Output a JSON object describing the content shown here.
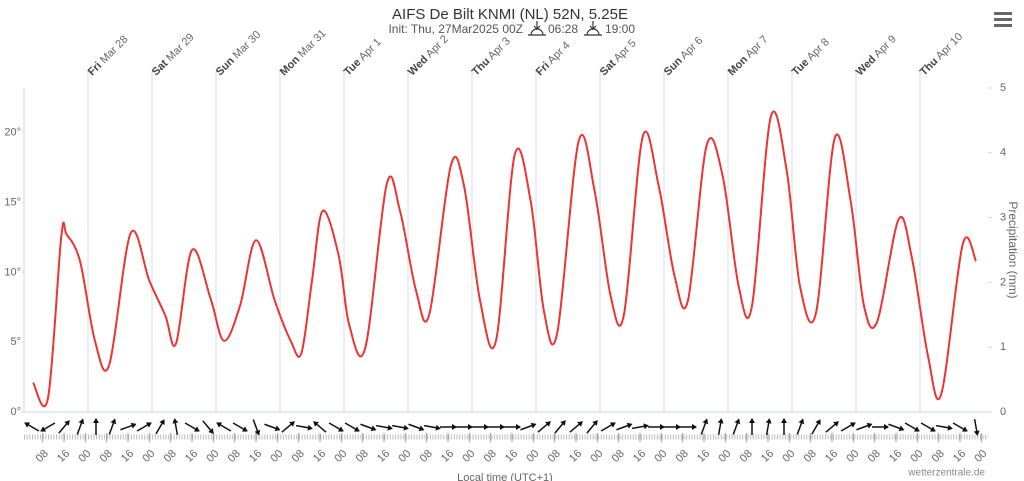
{
  "chart_data": {
    "type": "line",
    "title": "AIFS De Bilt KNMI (NL) 52N, 5.25E",
    "subtitle": "Init: Thu, 27Mar2025 00Z",
    "sunrise": "06:28",
    "sunset": "19:00",
    "credit": "wetterzentrale.de",
    "x_label": "Local time (UTC+1)",
    "y2_label": "Precipitation (mm)",
    "xlim": [
      0,
      361.5
    ],
    "ylim": [
      0,
      23.2
    ],
    "y2lim": [
      0,
      5
    ],
    "yticks": [
      {
        "value": 0,
        "label": "0°"
      },
      {
        "value": 5,
        "label": "5°"
      },
      {
        "value": 10,
        "label": "10°"
      },
      {
        "value": 15,
        "label": "15°"
      },
      {
        "value": 20,
        "label": "20°"
      }
    ],
    "y2ticks": [
      0,
      1,
      2,
      3,
      4,
      5
    ],
    "day_ticks": [
      {
        "value": 24,
        "day": "Fri",
        "date": "Mar 28"
      },
      {
        "value": 48,
        "day": "Sat",
        "date": "Mar 29"
      },
      {
        "value": 72,
        "day": "Sun",
        "date": "Mar 30"
      },
      {
        "value": 96,
        "day": "Mon",
        "date": "Mar 31"
      },
      {
        "value": 120,
        "day": "Tue",
        "date": "Apr 1"
      },
      {
        "value": 144,
        "day": "Wed",
        "date": "Apr 2"
      },
      {
        "value": 168,
        "day": "Thu",
        "date": "Apr 3"
      },
      {
        "value": 192,
        "day": "Fri",
        "date": "Apr 4"
      },
      {
        "value": 216,
        "day": "Sat",
        "date": "Apr 5"
      },
      {
        "value": 240,
        "day": "Sun",
        "date": "Apr 6"
      },
      {
        "value": 264,
        "day": "Mon",
        "date": "Apr 7"
      },
      {
        "value": 288,
        "day": "Tue",
        "date": "Apr 8"
      },
      {
        "value": 312,
        "day": "Wed",
        "date": "Apr 9"
      },
      {
        "value": 336,
        "day": "Thu",
        "date": "Apr 10"
      }
    ],
    "xticks": [
      {
        "value": 7,
        "label": "08"
      },
      {
        "value": 15,
        "label": "16"
      },
      {
        "value": 23,
        "label": "00"
      },
      {
        "value": 31,
        "label": "08"
      },
      {
        "value": 39,
        "label": "16"
      },
      {
        "value": 47,
        "label": "00"
      },
      {
        "value": 55,
        "label": "08"
      },
      {
        "value": 63,
        "label": "16"
      },
      {
        "value": 71,
        "label": "00"
      },
      {
        "value": 79,
        "label": "08"
      },
      {
        "value": 87,
        "label": "16"
      },
      {
        "value": 95,
        "label": "00"
      },
      {
        "value": 103,
        "label": "08"
      },
      {
        "value": 111,
        "label": "16"
      },
      {
        "value": 119,
        "label": "00"
      },
      {
        "value": 127,
        "label": "08"
      },
      {
        "value": 135,
        "label": "16"
      },
      {
        "value": 143,
        "label": "00"
      },
      {
        "value": 151,
        "label": "08"
      },
      {
        "value": 159,
        "label": "16"
      },
      {
        "value": 167,
        "label": "00"
      },
      {
        "value": 175,
        "label": "08"
      },
      {
        "value": 183,
        "label": "16"
      },
      {
        "value": 191,
        "label": "00"
      },
      {
        "value": 199,
        "label": "08"
      },
      {
        "value": 207,
        "label": "16"
      },
      {
        "value": 215,
        "label": "00"
      },
      {
        "value": 223,
        "label": "08"
      },
      {
        "value": 231,
        "label": "16"
      },
      {
        "value": 239,
        "label": "00"
      },
      {
        "value": 247,
        "label": "08"
      },
      {
        "value": 255,
        "label": "16"
      },
      {
        "value": 263,
        "label": "00"
      },
      {
        "value": 271,
        "label": "08"
      },
      {
        "value": 279,
        "label": "16"
      },
      {
        "value": 287,
        "label": "00"
      },
      {
        "value": 295,
        "label": "08"
      },
      {
        "value": 303,
        "label": "16"
      },
      {
        "value": 311,
        "label": "00"
      },
      {
        "value": 319,
        "label": "08"
      },
      {
        "value": 327,
        "label": "16"
      },
      {
        "value": 335,
        "label": "00"
      },
      {
        "value": 343,
        "label": "08"
      },
      {
        "value": 351,
        "label": "16"
      },
      {
        "value": 359,
        "label": "00"
      }
    ],
    "x": [
      3.4,
      9,
      14,
      16,
      21,
      26.6,
      32,
      40,
      47,
      53,
      57,
      63,
      70,
      75,
      81,
      87,
      94,
      100,
      104,
      108,
      112,
      118,
      122,
      128,
      136,
      141,
      147,
      152,
      160,
      165,
      171,
      177,
      184,
      190,
      195,
      200,
      208,
      214,
      220,
      225,
      232,
      238,
      244,
      249,
      256,
      262,
      268,
      273,
      280,
      286,
      291,
      297,
      304,
      310,
      315,
      320,
      328,
      333,
      339,
      344,
      352,
      357
    ],
    "series": [
      {
        "color": "#ee3333",
        "values": [
          2.1,
          1.0,
          12.6,
          12.7,
          10.8,
          5.1,
          3.4,
          12.8,
          9.4,
          6.9,
          4.9,
          11.6,
          8.1,
          5.1,
          7.6,
          12.3,
          8.0,
          5.1,
          4.2,
          9.4,
          14.4,
          11.2,
          6.2,
          4.6,
          16.3,
          14.4,
          8.7,
          7.0,
          17.6,
          16.2,
          8.0,
          5.1,
          18.4,
          15.1,
          7.2,
          5.7,
          19.4,
          15.8,
          8.3,
          7.0,
          19.7,
          16.2,
          9.7,
          8.0,
          19.1,
          16.9,
          9.0,
          7.6,
          21.1,
          17.3,
          9.0,
          7.1,
          19.6,
          15.1,
          7.6,
          6.5,
          13.8,
          11.0,
          4.0,
          1.3,
          12.0,
          10.8
        ]
      }
    ],
    "wind_x": [
      3,
      9,
      15,
      21,
      27,
      33,
      39,
      45,
      51,
      57,
      63,
      69,
      75,
      81,
      87,
      93,
      99,
      105,
      111,
      117,
      123,
      129,
      135,
      141,
      147,
      153,
      159,
      165,
      171,
      177,
      183,
      189,
      195,
      201,
      207,
      213,
      219,
      225,
      231,
      237,
      243,
      249,
      255,
      261,
      267,
      273,
      279,
      285,
      291,
      297,
      303,
      309,
      315,
      321,
      327,
      333,
      339,
      345,
      351,
      357
    ],
    "wind_direction": [
      120,
      60,
      220,
      200,
      180,
      200,
      250,
      240,
      210,
      170,
      300,
      320,
      120,
      300,
      340,
      290,
      230,
      280,
      130,
      300,
      300,
      290,
      280,
      280,
      290,
      280,
      270,
      270,
      270,
      270,
      270,
      250,
      230,
      220,
      230,
      220,
      240,
      250,
      260,
      270,
      270,
      270,
      200,
      190,
      200,
      180,
      190,
      180,
      200,
      210,
      230,
      240,
      250,
      270,
      290,
      300,
      300,
      280,
      300,
      350
    ]
  }
}
